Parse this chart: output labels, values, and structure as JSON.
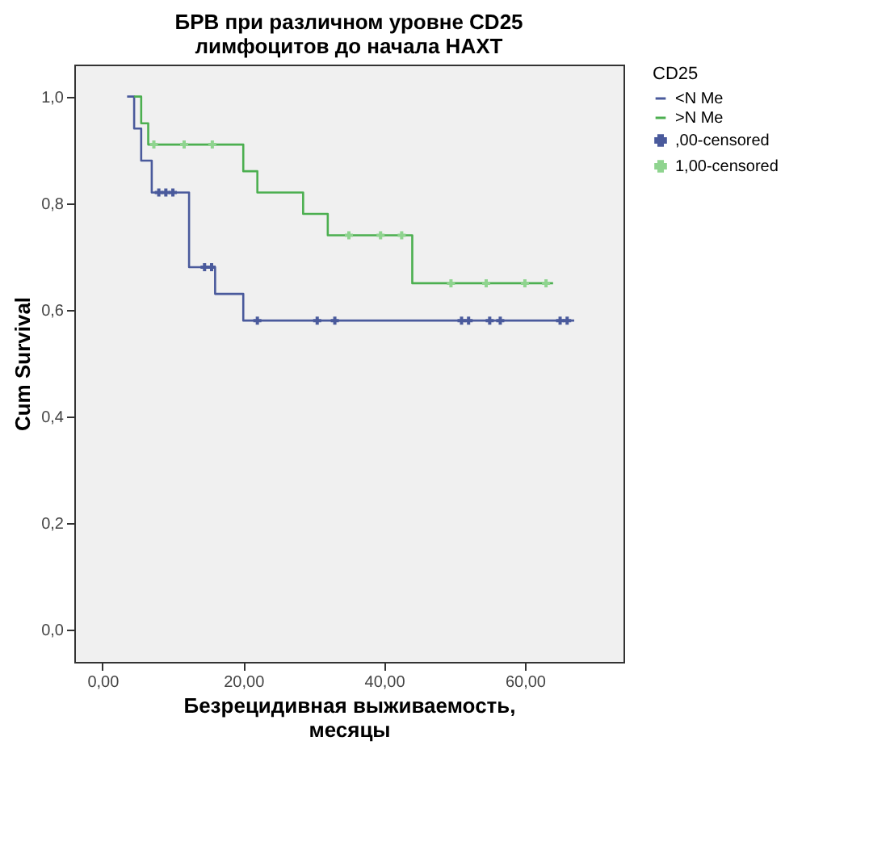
{
  "chart_data": {
    "type": "step",
    "title": "БРВ при различном уровне CD25\nлимфоцитов до начала НАХТ",
    "xlabel": "Безрецидивная выживаемость,\nмесяцы",
    "ylabel": "Cum Survival",
    "legend_title": "CD25",
    "legend": "right",
    "grid": false,
    "xlim": [
      -4,
      74
    ],
    "ylim": [
      -0.06,
      1.06
    ],
    "xticks": [
      {
        "value": 0,
        "label": "0,00"
      },
      {
        "value": 20,
        "label": "20,00"
      },
      {
        "value": 40,
        "label": "40,00"
      },
      {
        "value": 60,
        "label": "60,00"
      }
    ],
    "yticks": [
      {
        "value": 0,
        "label": "0,0"
      },
      {
        "value": 0.2,
        "label": "0,2"
      },
      {
        "value": 0.4,
        "label": "0,4"
      },
      {
        "value": 0.6,
        "label": "0,6"
      },
      {
        "value": 0.8,
        "label": "0,8"
      },
      {
        "value": 1.0,
        "label": "1,0"
      }
    ],
    "series": [
      {
        "name": "<N Me",
        "color": "#4a5a9c",
        "x": [
          3.5,
          4.5,
          5.5,
          7,
          12.3,
          16,
          20,
          67
        ],
        "values": [
          1.0,
          0.94,
          0.88,
          0.82,
          0.68,
          0.63,
          0.58,
          0.58
        ]
      },
      {
        "name": ">N Me",
        "color": "#4caf50",
        "x": [
          4.5,
          5.5,
          6.5,
          20,
          22,
          28.5,
          32,
          44,
          64
        ],
        "values": [
          1.0,
          0.95,
          0.91,
          0.86,
          0.82,
          0.78,
          0.74,
          0.65,
          0.65
        ]
      },
      {
        "name": ",00-censored",
        "type": "scatter",
        "marker": "cross",
        "color": "#4a5a9c",
        "x": [
          8,
          9,
          10,
          14.5,
          15.5,
          22,
          30.5,
          33,
          51,
          52,
          55,
          56.5,
          65,
          66
        ],
        "values": [
          0.82,
          0.82,
          0.82,
          0.68,
          0.68,
          0.58,
          0.58,
          0.58,
          0.58,
          0.58,
          0.58,
          0.58,
          0.58,
          0.58
        ]
      },
      {
        "name": "1,00-censored",
        "type": "scatter",
        "marker": "cross",
        "color": "#8fd48f",
        "x": [
          7.3,
          11.6,
          15.6,
          35,
          39.5,
          42.5,
          49.5,
          54.5,
          60,
          63
        ],
        "values": [
          0.91,
          0.91,
          0.91,
          0.74,
          0.74,
          0.74,
          0.65,
          0.65,
          0.65,
          0.65
        ]
      }
    ]
  }
}
